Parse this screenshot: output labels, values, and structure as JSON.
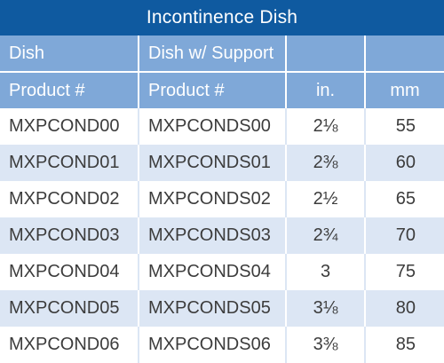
{
  "table": {
    "title": "Incontinence Dish",
    "header_row1": [
      "Dish",
      "Dish w/ Support",
      "",
      ""
    ],
    "header_row2": [
      "Product #",
      "Product #",
      "in.",
      "mm"
    ],
    "rows": [
      [
        "MXPCOND00",
        "MXPCONDS00",
        "2⅛",
        "55"
      ],
      [
        "MXPCOND01",
        "MXPCONDS01",
        "2⅜",
        "60"
      ],
      [
        "MXPCOND02",
        "MXPCONDS02",
        "2½",
        "65"
      ],
      [
        "MXPCOND03",
        "MXPCONDS03",
        "2¾",
        "70"
      ],
      [
        "MXPCOND04",
        "MXPCONDS04",
        "3",
        "75"
      ],
      [
        "MXPCOND05",
        "MXPCONDS05",
        "3⅛",
        "80"
      ],
      [
        "MXPCOND06",
        "MXPCONDS06",
        "3⅜",
        "85"
      ]
    ]
  },
  "colors": {
    "title_bg": "#0f5aa0",
    "header_bg": "#7fa8d8",
    "stripe_bg": "#dce6f4",
    "text": "#3c3c3c"
  }
}
